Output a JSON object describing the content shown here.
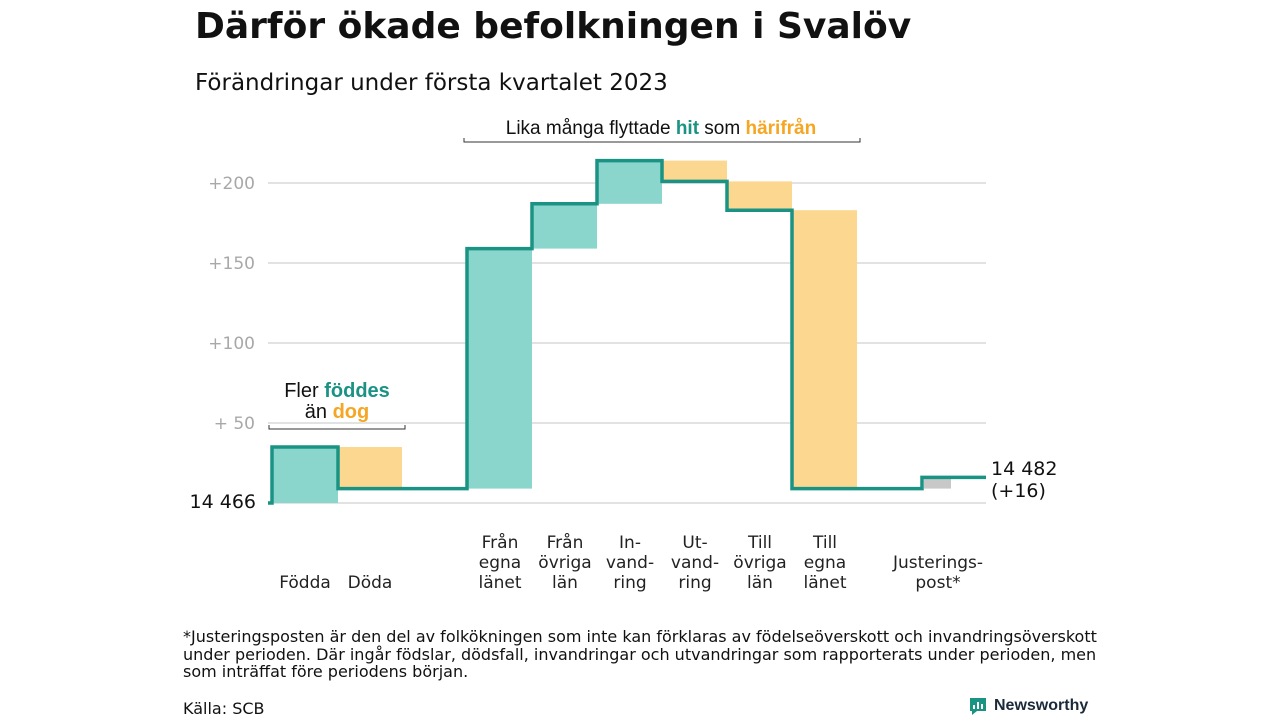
{
  "header": {
    "title": "Därför ökade befolkningen i Svalöv",
    "subtitle": "Förändringar under första kvartalet 2023"
  },
  "chart_data": {
    "type": "waterfall",
    "title": "Därför ökade befolkningen i Svalöv",
    "subtitle": "Förändringar under första kvartalet 2023",
    "start_label": "14 466",
    "end_label_value": "14 482",
    "end_label_change": "(+16)",
    "start_value": 14466,
    "end_value": 14482,
    "ylim": [
      0,
      220
    ],
    "yticks": [
      {
        "value": 50,
        "label": "+ 50"
      },
      {
        "value": 100,
        "label": "+100"
      },
      {
        "value": 150,
        "label": "+150"
      },
      {
        "value": 200,
        "label": "+200"
      }
    ],
    "grid": true,
    "steps": [
      {
        "key": "fodda",
        "lines": [
          "Födda"
        ],
        "change": 35,
        "kind": "in"
      },
      {
        "key": "doda",
        "lines": [
          "Döda"
        ],
        "change": -26,
        "kind": "out"
      },
      {
        "key": "fran-egna-lanet",
        "lines": [
          "Från",
          "egna",
          "länet"
        ],
        "change": 150,
        "kind": "in"
      },
      {
        "key": "fran-ovriga-lan",
        "lines": [
          "Från",
          "övriga",
          "län"
        ],
        "change": 28,
        "kind": "in"
      },
      {
        "key": "invandring",
        "lines": [
          "In-",
          "vand-",
          "ring"
        ],
        "change": 27,
        "kind": "in"
      },
      {
        "key": "utvandring",
        "lines": [
          "Ut-",
          "vand-",
          "ring"
        ],
        "change": -13,
        "kind": "out"
      },
      {
        "key": "till-ovriga-lan",
        "lines": [
          "Till",
          "övriga",
          "län"
        ],
        "change": -18,
        "kind": "out"
      },
      {
        "key": "till-egna-lanet",
        "lines": [
          "Till",
          "egna",
          "länet"
        ],
        "change": -174,
        "kind": "out"
      },
      {
        "key": "justeringspost",
        "lines": [
          "Justerings-",
          "post*"
        ],
        "change": 7,
        "kind": "adjust"
      }
    ],
    "annotations": {
      "births": {
        "line1": "Fler ",
        "line1_highlight": "föddes",
        "line2": "än ",
        "line2_highlight": "dog"
      },
      "moves": {
        "text1": "Lika många flyttade ",
        "highlight1": "hit",
        "text2": " som ",
        "highlight2": "härifrån"
      }
    },
    "colors": {
      "increase": "#8ad5cc",
      "decrease": "#fbd78f",
      "adjust": "#c8c8c8",
      "step_line": "#1a9384",
      "highlight_in": "#1a9384",
      "highlight_out": "#f5a623",
      "grid": "#e2e2e2",
      "tick_text": "#a8a8a8"
    }
  },
  "footer": {
    "footnote": "*Justeringsposten är den del av folkökningen som inte kan förklaras av födelseöverskott och invandringsöverskott under perioden. Där ingår födslar, dödsfall, invandringar och utvandringar som rapporterats under perioden, men som inträffat före periodens början.",
    "source": "Källa: SCB",
    "brand": "Newsworthy"
  }
}
